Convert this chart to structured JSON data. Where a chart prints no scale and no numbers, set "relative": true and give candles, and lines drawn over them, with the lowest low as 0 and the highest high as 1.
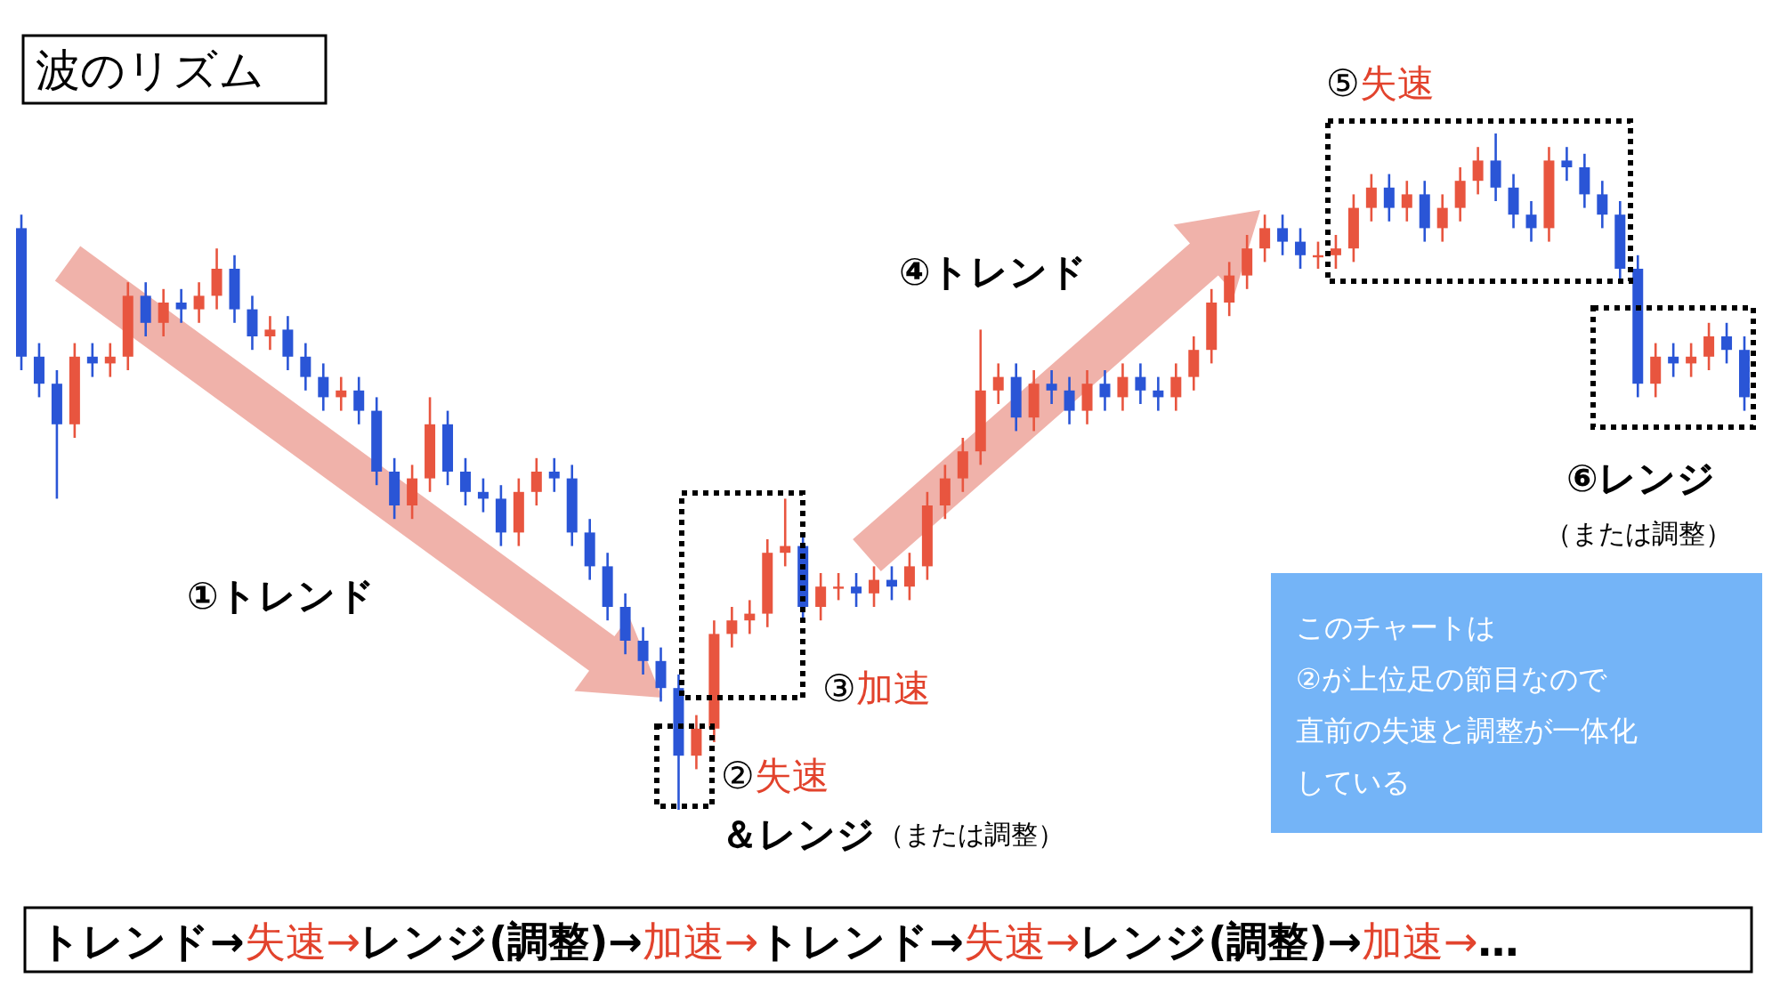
{
  "chart_data": {
    "type": "candlestick",
    "relative": true,
    "title": "波のリズム",
    "categories": [
      null,
      null,
      null,
      null,
      null,
      null,
      null,
      null,
      null,
      null,
      null,
      null,
      null,
      null,
      null,
      null,
      null,
      null,
      null,
      null,
      null,
      null,
      null,
      null,
      null,
      null,
      null,
      null,
      null,
      null,
      null,
      null,
      null,
      null,
      null,
      null,
      null,
      null,
      null,
      null,
      null,
      null,
      null,
      null,
      null,
      null,
      null,
      null,
      null,
      null,
      null,
      null,
      null,
      null,
      null,
      null,
      null,
      null,
      null,
      null,
      null,
      null,
      null,
      null,
      null,
      null,
      null,
      null,
      null,
      null,
      null,
      null,
      null,
      null,
      null,
      null,
      null,
      null,
      null,
      null,
      null,
      null,
      null,
      null,
      null,
      null,
      null,
      null,
      null,
      null,
      null,
      null,
      null,
      null,
      null,
      null,
      null,
      null
    ],
    "ohlc": [
      [
        0.86,
        0.88,
        0.65,
        0.67
      ],
      [
        0.67,
        0.69,
        0.61,
        0.63
      ],
      [
        0.63,
        0.65,
        0.46,
        0.57
      ],
      [
        0.57,
        0.69,
        0.55,
        0.67
      ],
      [
        0.67,
        0.69,
        0.64,
        0.66
      ],
      [
        0.66,
        0.69,
        0.64,
        0.67
      ],
      [
        0.67,
        0.78,
        0.65,
        0.76
      ],
      [
        0.76,
        0.78,
        0.7,
        0.72
      ],
      [
        0.72,
        0.77,
        0.7,
        0.75
      ],
      [
        0.75,
        0.77,
        0.72,
        0.74
      ],
      [
        0.74,
        0.78,
        0.72,
        0.76
      ],
      [
        0.76,
        0.83,
        0.74,
        0.8
      ],
      [
        0.8,
        0.82,
        0.72,
        0.74
      ],
      [
        0.74,
        0.76,
        0.68,
        0.7
      ],
      [
        0.7,
        0.73,
        0.68,
        0.71
      ],
      [
        0.71,
        0.73,
        0.65,
        0.67
      ],
      [
        0.67,
        0.69,
        0.62,
        0.64
      ],
      [
        0.64,
        0.66,
        0.59,
        0.61
      ],
      [
        0.61,
        0.64,
        0.59,
        0.62
      ],
      [
        0.62,
        0.64,
        0.57,
        0.59
      ],
      [
        0.59,
        0.61,
        0.48,
        0.5
      ],
      [
        0.5,
        0.52,
        0.43,
        0.45
      ],
      [
        0.45,
        0.51,
        0.43,
        0.49
      ],
      [
        0.49,
        0.61,
        0.47,
        0.57
      ],
      [
        0.57,
        0.59,
        0.48,
        0.5
      ],
      [
        0.5,
        0.52,
        0.45,
        0.47
      ],
      [
        0.47,
        0.49,
        0.44,
        0.46
      ],
      [
        0.46,
        0.48,
        0.39,
        0.41
      ],
      [
        0.41,
        0.49,
        0.39,
        0.47
      ],
      [
        0.47,
        0.52,
        0.45,
        0.5
      ],
      [
        0.5,
        0.52,
        0.47,
        0.49
      ],
      [
        0.49,
        0.51,
        0.39,
        0.41
      ],
      [
        0.41,
        0.43,
        0.34,
        0.36
      ],
      [
        0.36,
        0.38,
        0.28,
        0.3
      ],
      [
        0.3,
        0.32,
        0.23,
        0.25
      ],
      [
        0.25,
        0.27,
        0.2,
        0.22
      ],
      [
        0.22,
        0.24,
        0.16,
        0.18
      ],
      [
        0.18,
        0.2,
        0.0,
        0.08
      ],
      [
        0.08,
        0.14,
        0.06,
        0.12
      ],
      [
        0.12,
        0.28,
        0.1,
        0.26
      ],
      [
        0.26,
        0.3,
        0.24,
        0.28
      ],
      [
        0.28,
        0.31,
        0.26,
        0.29
      ],
      [
        0.29,
        0.4,
        0.27,
        0.38
      ],
      [
        0.38,
        0.46,
        0.36,
        0.39
      ],
      [
        0.39,
        0.41,
        0.28,
        0.3
      ],
      [
        0.3,
        0.35,
        0.28,
        0.33
      ],
      [
        0.33,
        0.35,
        0.31,
        0.33
      ],
      [
        0.33,
        0.35,
        0.3,
        0.32
      ],
      [
        0.32,
        0.36,
        0.3,
        0.34
      ],
      [
        0.34,
        0.36,
        0.31,
        0.33
      ],
      [
        0.33,
        0.38,
        0.31,
        0.36
      ],
      [
        0.36,
        0.47,
        0.34,
        0.45
      ],
      [
        0.45,
        0.51,
        0.43,
        0.49
      ],
      [
        0.49,
        0.55,
        0.47,
        0.53
      ],
      [
        0.53,
        0.71,
        0.51,
        0.62
      ],
      [
        0.62,
        0.66,
        0.6,
        0.64
      ],
      [
        0.64,
        0.66,
        0.56,
        0.58
      ],
      [
        0.58,
        0.65,
        0.56,
        0.63
      ],
      [
        0.63,
        0.65,
        0.6,
        0.62
      ],
      [
        0.62,
        0.64,
        0.57,
        0.59
      ],
      [
        0.59,
        0.65,
        0.57,
        0.63
      ],
      [
        0.63,
        0.65,
        0.59,
        0.61
      ],
      [
        0.61,
        0.66,
        0.59,
        0.64
      ],
      [
        0.64,
        0.66,
        0.6,
        0.62
      ],
      [
        0.62,
        0.64,
        0.59,
        0.61
      ],
      [
        0.61,
        0.66,
        0.59,
        0.64
      ],
      [
        0.64,
        0.7,
        0.62,
        0.68
      ],
      [
        0.68,
        0.77,
        0.66,
        0.75
      ],
      [
        0.75,
        0.81,
        0.73,
        0.79
      ],
      [
        0.79,
        0.85,
        0.77,
        0.83
      ],
      [
        0.83,
        0.88,
        0.81,
        0.86
      ],
      [
        0.86,
        0.88,
        0.82,
        0.84
      ],
      [
        0.84,
        0.86,
        0.8,
        0.82
      ],
      [
        0.82,
        0.84,
        0.8,
        0.82
      ],
      [
        0.82,
        0.85,
        0.8,
        0.83
      ],
      [
        0.83,
        0.91,
        0.81,
        0.89
      ],
      [
        0.89,
        0.94,
        0.87,
        0.92
      ],
      [
        0.92,
        0.94,
        0.87,
        0.89
      ],
      [
        0.89,
        0.93,
        0.87,
        0.91
      ],
      [
        0.91,
        0.93,
        0.84,
        0.86
      ],
      [
        0.86,
        0.91,
        0.84,
        0.89
      ],
      [
        0.89,
        0.95,
        0.87,
        0.93
      ],
      [
        0.93,
        0.98,
        0.91,
        0.96
      ],
      [
        0.96,
        1.0,
        0.9,
        0.92
      ],
      [
        0.92,
        0.94,
        0.86,
        0.88
      ],
      [
        0.88,
        0.9,
        0.84,
        0.86
      ],
      [
        0.86,
        0.98,
        0.84,
        0.96
      ],
      [
        0.96,
        0.98,
        0.93,
        0.95
      ],
      [
        0.95,
        0.97,
        0.89,
        0.91
      ],
      [
        0.91,
        0.93,
        0.86,
        0.88
      ],
      [
        0.88,
        0.9,
        0.78,
        0.8
      ],
      [
        0.8,
        0.82,
        0.61,
        0.63
      ],
      [
        0.63,
        0.69,
        0.61,
        0.67
      ],
      [
        0.67,
        0.69,
        0.64,
        0.66
      ],
      [
        0.66,
        0.69,
        0.64,
        0.67
      ],
      [
        0.67,
        0.72,
        0.65,
        0.7
      ],
      [
        0.7,
        0.72,
        0.66,
        0.68
      ],
      [
        0.68,
        0.7,
        0.59,
        0.61
      ]
    ],
    "annotations": [
      "①トレンド",
      "②失速",
      "＆レンジ",
      "（または調整）",
      "③加速",
      "④トレンド",
      "⑤失速",
      "⑥レンジ",
      "（または調整）",
      "このチャートは",
      "②が上位足の節目なので",
      "直前の失速と調整が一体化",
      "している",
      "トレンド→失速→レンジ(調整)→加速→トレンド→失速→レンジ(調整)→加速→…"
    ]
  }
}
